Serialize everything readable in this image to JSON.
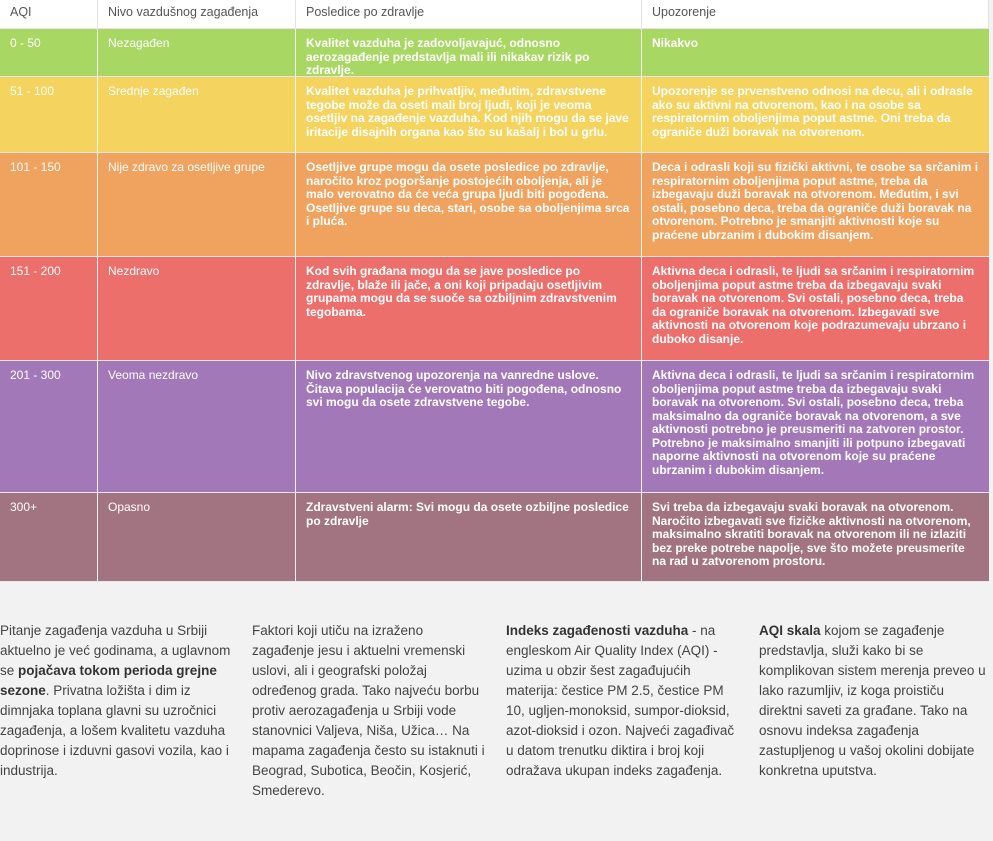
{
  "table": {
    "headers": [
      "AQI",
      "Nivo vazdušnog zagađenja",
      "Posledice po zdravlje",
      "Upozorenje"
    ],
    "rows": [
      {
        "aqi": "0 - 50",
        "level": "Nezagađen",
        "effects": "Kvalitet vazduha je zadovoljavajuć, odnosno aerozagađenje predstavlja mali ili nikakav rizik po zdravlje.",
        "warning": "Nikakvo",
        "color": "#a8d863"
      },
      {
        "aqi": "51 - 100",
        "level": "Srednje zagađen",
        "effects": "Kvalitet vazduha je prihvatljiv, međutim, zdravstvene tegobe može da oseti mali broj ljudi, koji je veoma osetljiv na zagađenje vazduha. Kod njih mogu da se jave iritacije disajnih organa kao što su kašalj i bol u grlu.",
        "warning": "Upozorenje se prvenstveno odnosi na decu, ali i odrasle ako su aktivni na otvorenom, kao i na osobe sa respiratornim oboljenjima poput astme. Oni treba da ograniče duži boravak na otvorenom.",
        "color": "#f5d35f"
      },
      {
        "aqi": "101 - 150",
        "level": "Nije zdravo za osetljive grupe",
        "effects": "Osetljive grupe mogu da osete posledice po zdravlje, naročito kroz pogoršanje postojećih oboljenja, ali je malo verovatno da će veća grupa ljudi biti pogođena. Osetljive grupe su deca, stari, osobe sa oboljenjima srca i pluća.",
        "warning": "Deca i odrasli koji su fizički aktivni, te osobe sa srčanim i respiratornim oboljenjima poput astme, treba da izbegavaju duži boravak na otvorenom. Međutim, i svi ostali, posebno deca, treba da ograniče duži boravak na otvorenom. Potrebno je smanjiti aktivnosti koje su praćene ubrzanim i dubokim disanjem.",
        "color": "#f0a25f"
      },
      {
        "aqi": "151 - 200",
        "level": "Nezdravo",
        "effects": "Kod svih građana mogu da se jave posledice po zdravlje, blaže ili jače, a oni koji pripadaju osetljivim grupama mogu da se suoče sa ozbiljnim zdravstvenim tegobama.",
        "warning": "Aktivna deca i odrasli, te ljudi sa srčanim i respiratornim oboljenjima poput astme treba da izbegavaju svaki boravak na otvorenom. Svi ostali, posebno deca, treba da ograniče boravak na otvorenom. Izbegavati sve aktivnosti na otvorenom koje podrazumevaju ubrzano i duboko disanje.",
        "color": "#ec6f6c"
      },
      {
        "aqi": "201 - 300",
        "level": "Veoma nezdravo",
        "effects": "Nivo zdravstvenog upozorenja na vanredne uslove. Čitava populacija će verovatno biti pogođena, odnosno svi mogu da osete zdravstvene tegobe.",
        "warning": "Aktivna deca i odrasli, te ljudi sa srčanim i respiratornim oboljenjima poput astme treba da izbegavaju svaki boravak na otvorenom. Svi ostali, posebno deca, treba maksimalno da ograniče boravak na otvorenom, a sve aktivnosti potrebno je preusmeriti na zatvoren prostor. Potrebno je maksimalno smanjiti ili potpuno izbegavati naporne aktivnosti na otvorenom koje su praćene ubrzanim i dubokim disanjem.",
        "color": "#a278b9"
      },
      {
        "aqi": "300+",
        "level": "Opasno",
        "effects": "Zdravstveni alarm: Svi mogu da osete ozbiljne posledice po zdravlje",
        "warning": "Svi treba da izbegavaju svaki boravak na otvorenom. Naročito izbegavati sve fizičke aktivnosti na otvorenom, maksimalno skratiti boravak na otvorenom ili ne izlaziti bez preke potrebe napolje, sve što možete preusmerite na rad u zatvorenom prostoru.",
        "color": "#a27381"
      }
    ]
  },
  "columns": {
    "c1": {
      "t1": "Pitanje zagađenja vazduha u Srbiji aktuelno je već godinama, a uglavnom se ",
      "b1": "pojačava tokom perioda grejne sezone",
      "t2": ". Privatna ložišta i dim iz dimnjaka toplana glavni su uzročnici zagađenja, a lošem kvalitetu vazduha doprinose i izduvni gasovi vozila, kao i industrija."
    },
    "c2": {
      "t1": "Faktori koji utiču na izraženo zagađenje jesu i aktuelni vremenski uslovi, ali i geografski položaj određenog grada. Tako najveću borbu protiv aerozagađenja u Srbiji vode stanovnici Valjeva, Niša, Užica… Na mapama zagađenja često su istaknuti i Beograd, Subotica, Beočin, Kosjerić, Smederevo."
    },
    "c3": {
      "b1": "Indeks zagađenosti vazduha",
      "t1": " - na engleskom Air Quality Index (AQI) - uzima u obzir šest zagađujućih materija: čestice PM 2.5, čestice PM 10, ugljen-monoksid, sumpor-dioksid, azot-dioksid i ozon. Najveći zagađivač u datom trenutku diktira i broj koji odražava ukupan indeks zagađenja."
    },
    "c4": {
      "b1": "AQI skala",
      "t1": " kojom se zagađenje predstavlja, služi kako bi se komplikovan sistem merenja preveo u lako razumljiv, iz koga proističu direktni saveti za građane. Tako na osnovu indeksa zagađenja zastupljenog u vašoj okolini dobijate konkretna uputstva."
    }
  }
}
